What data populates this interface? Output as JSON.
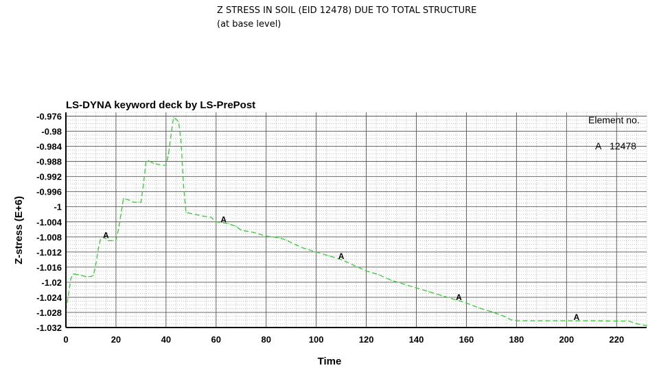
{
  "page": {
    "title_line1": "Z STRESS IN SOIL (EID 12478) DUE TO TOTAL STRUCTURE",
    "title_line2": "(at base level)"
  },
  "chart_data": {
    "type": "line",
    "title": "LS-DYNA keyword deck by LS-PrePost",
    "xlabel": "Time",
    "ylabel": "Z-stress (E+6)",
    "xlim": [
      0,
      232
    ],
    "ylim": [
      -1.032,
      -0.975
    ],
    "x_ticks": [
      0,
      20,
      40,
      60,
      80,
      100,
      120,
      140,
      160,
      180,
      200,
      220
    ],
    "x_tick_labels": [
      "0",
      "20",
      "40",
      "60",
      "80",
      "100",
      "120",
      "140",
      "160",
      "180",
      "200",
      "220"
    ],
    "y_ticks": [
      -0.976,
      -0.98,
      -0.984,
      -0.988,
      -0.992,
      -0.996,
      -1.0,
      -1.004,
      -1.008,
      -1.012,
      -1.016,
      -1.02,
      -1.024,
      -1.028,
      -1.032
    ],
    "y_tick_labels": [
      "-0.976",
      "-0.98",
      "-0.984",
      "-0.988",
      "-0.992",
      "-0.996",
      "-1",
      "-1.004",
      "-1.008",
      "-1.012",
      "-1.016",
      "-1.02",
      "-1.024",
      "-1.028",
      "-1.032"
    ],
    "grid": true,
    "legend": {
      "title": "Element no.",
      "entries": [
        {
          "marker": "A",
          "label": "12478"
        }
      ],
      "position": "top-right"
    },
    "series": [
      {
        "marker": "A",
        "color": "#33cc33",
        "line_style": "dashed",
        "marker_x": [
          16,
          63,
          110,
          157,
          204
        ],
        "x": [
          0,
          1,
          2,
          3,
          5,
          8,
          10,
          11,
          12,
          13,
          14,
          15,
          16,
          17,
          18,
          19,
          20,
          21,
          22,
          23,
          25,
          27,
          29,
          30,
          31,
          32,
          33,
          35,
          37,
          39,
          40,
          41,
          42,
          43,
          44,
          45,
          46,
          47,
          48,
          55,
          58,
          60,
          65,
          68,
          70,
          75,
          80,
          85,
          88,
          90,
          95,
          100,
          105,
          110,
          115,
          120,
          125,
          130,
          135,
          140,
          145,
          150,
          155,
          160,
          165,
          170,
          175,
          178,
          180,
          190,
          195,
          200,
          205,
          210,
          220,
          225,
          228,
          232
        ],
        "y": [
          -1.0275,
          -1.0235,
          -1.019,
          -1.0178,
          -1.018,
          -1.0185,
          -1.0185,
          -1.0182,
          -1.015,
          -1.011,
          -1.008,
          -1.008,
          -1.0085,
          -1.009,
          -1.009,
          -1.009,
          -1.009,
          -1.006,
          -1.002,
          -0.9978,
          -0.9982,
          -0.9988,
          -0.9988,
          -0.9988,
          -0.994,
          -0.988,
          -0.9878,
          -0.9885,
          -0.9888,
          -0.989,
          -0.989,
          -0.986,
          -0.981,
          -0.9763,
          -0.9768,
          -0.9775,
          -0.9825,
          -0.9945,
          -1.0015,
          -1.0025,
          -1.0028,
          -1.004,
          -1.0045,
          -1.0052,
          -1.0062,
          -1.0068,
          -1.0078,
          -1.0082,
          -1.0088,
          -1.0095,
          -1.011,
          -1.012,
          -1.013,
          -1.014,
          -1.0155,
          -1.017,
          -1.018,
          -1.0195,
          -1.0205,
          -1.0215,
          -1.0225,
          -1.0235,
          -1.0245,
          -1.0255,
          -1.0268,
          -1.0278,
          -1.029,
          -1.03,
          -1.0302,
          -1.0302,
          -1.0302,
          -1.0302,
          -1.0302,
          -1.0302,
          -1.0303,
          -1.0303,
          -1.031,
          -1.0315
        ]
      }
    ]
  }
}
